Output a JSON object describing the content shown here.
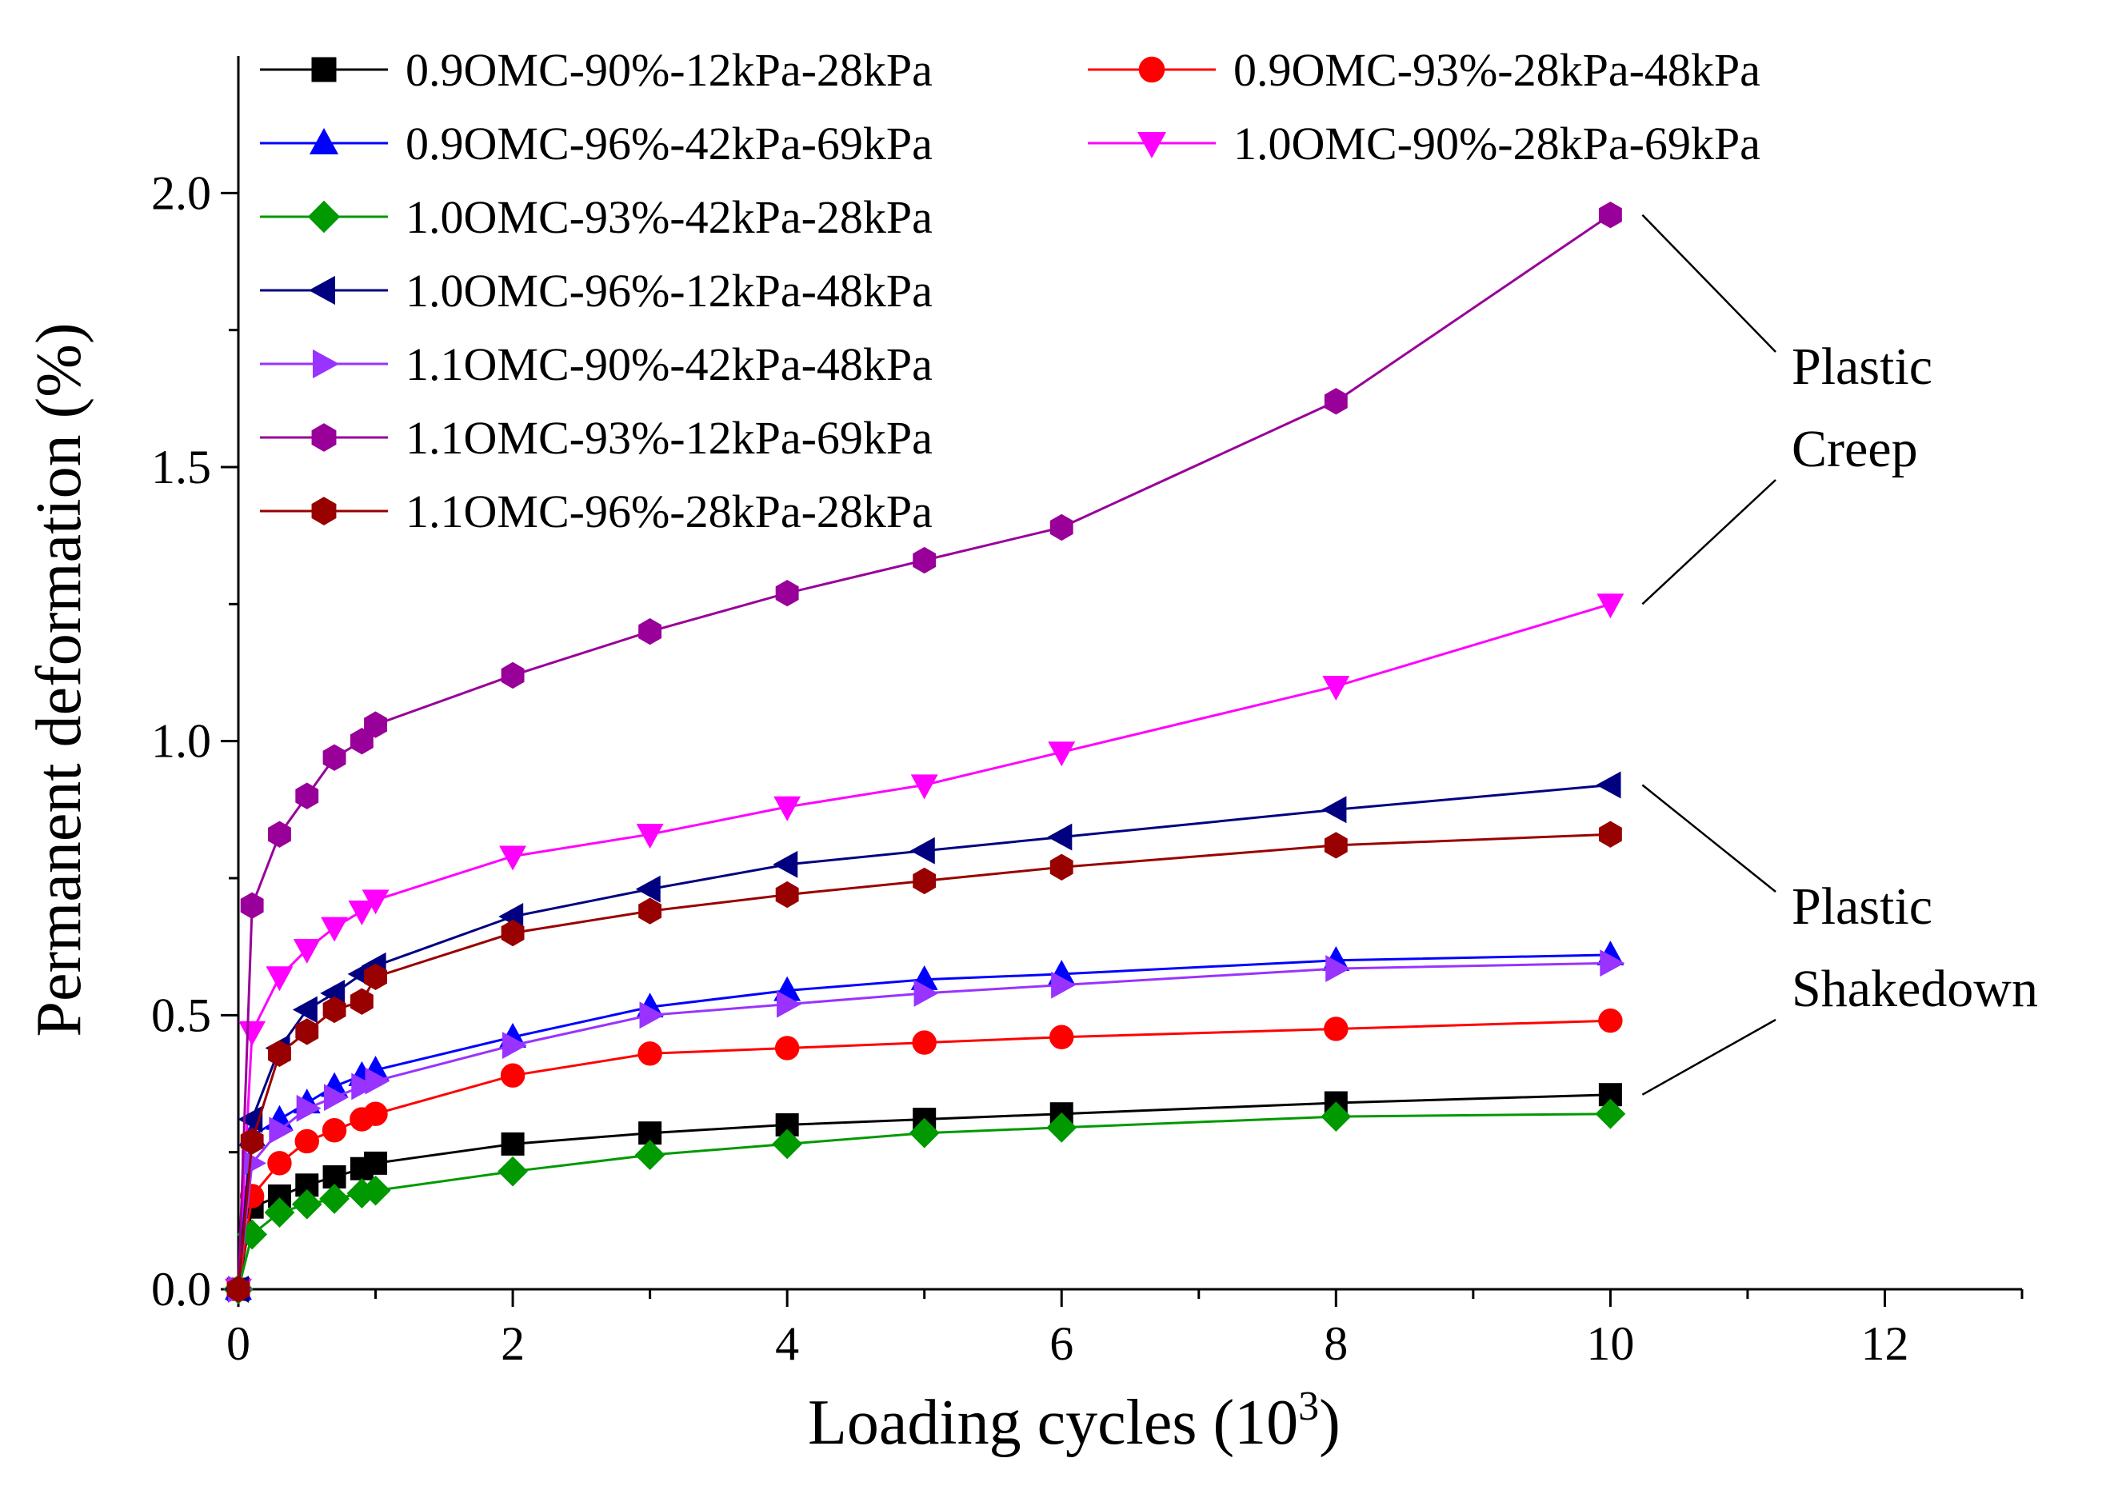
{
  "chart_data": {
    "type": "line",
    "title": "",
    "xlabel": "Loading cycles (10",
    "xlabel_sup": "3",
    "xlabel_end": ")",
    "ylabel": "Permanent deformation (%)",
    "xlim": [
      0,
      13
    ],
    "ylim": [
      0,
      2.25
    ],
    "xticks": [
      0,
      2,
      4,
      6,
      8,
      10,
      12
    ],
    "yticks": [
      0.0,
      0.5,
      1.0,
      1.5,
      2.0
    ],
    "xtick_labels": [
      "0",
      "2",
      "4",
      "6",
      "8",
      "10",
      "12"
    ],
    "ytick_labels": [
      "0.0",
      "0.5",
      "1.0",
      "1.5",
      "2.0"
    ],
    "legend_position": "top-left",
    "x": [
      0,
      0.1,
      0.3,
      0.5,
      0.7,
      0.9,
      1,
      2,
      3,
      4,
      5,
      6,
      8,
      10
    ],
    "series": [
      {
        "name": "0.9OMC-90%-12kPa-28kPa",
        "color": "#000000",
        "marker": "square",
        "values": [
          0,
          0.15,
          0.17,
          0.19,
          0.205,
          0.22,
          0.23,
          0.265,
          0.285,
          0.3,
          0.31,
          0.32,
          0.34,
          0.355
        ]
      },
      {
        "name": "0.9OMC-93%-28kPa-48kPa",
        "color": "#ff0000",
        "marker": "circle",
        "values": [
          0,
          0.17,
          0.23,
          0.27,
          0.29,
          0.31,
          0.32,
          0.39,
          0.43,
          0.44,
          0.45,
          0.46,
          0.475,
          0.49
        ]
      },
      {
        "name": "0.9OMC-96%-42kPa-69kPa",
        "color": "#0000ff",
        "marker": "triangle-up",
        "values": [
          0,
          0.28,
          0.31,
          0.34,
          0.37,
          0.39,
          0.4,
          0.46,
          0.515,
          0.545,
          0.565,
          0.575,
          0.6,
          0.61
        ]
      },
      {
        "name": "1.0OMC-90%-28kPa-69kPa",
        "color": "#ff00ff",
        "marker": "triangle-down",
        "values": [
          0,
          0.47,
          0.57,
          0.62,
          0.66,
          0.69,
          0.71,
          0.79,
          0.83,
          0.88,
          0.92,
          0.98,
          1.1,
          1.25
        ]
      },
      {
        "name": "1.0OMC-93%-42kPa-28kPa",
        "color": "#009900",
        "marker": "diamond",
        "values": [
          0,
          0.1,
          0.14,
          0.155,
          0.165,
          0.175,
          0.18,
          0.215,
          0.245,
          0.265,
          0.285,
          0.295,
          0.315,
          0.32
        ]
      },
      {
        "name": "1.0OMC-96%-12kPa-48kPa",
        "color": "#000080",
        "marker": "triangle-left",
        "values": [
          0,
          0.31,
          0.44,
          0.51,
          0.54,
          0.575,
          0.59,
          0.68,
          0.73,
          0.775,
          0.8,
          0.825,
          0.875,
          0.92
        ]
      },
      {
        "name": "1.1OMC-90%-42kPa-48kPa",
        "color": "#9933ff",
        "marker": "triangle-right",
        "values": [
          0,
          0.23,
          0.29,
          0.33,
          0.35,
          0.37,
          0.38,
          0.445,
          0.5,
          0.52,
          0.54,
          0.555,
          0.585,
          0.595
        ]
      },
      {
        "name": "1.1OMC-93%-12kPa-69kPa",
        "color": "#990099",
        "marker": "hexagon",
        "values": [
          0,
          0.7,
          0.83,
          0.9,
          0.97,
          1.0,
          1.03,
          1.12,
          1.2,
          1.27,
          1.33,
          1.39,
          1.62,
          1.96
        ]
      },
      {
        "name": "1.1OMC-96%-28kPa-28kPa",
        "color": "#990000",
        "marker": "hexagon",
        "values": [
          0,
          0.27,
          0.43,
          0.47,
          0.51,
          0.525,
          0.57,
          0.65,
          0.69,
          0.72,
          0.745,
          0.77,
          0.81,
          0.83
        ]
      }
    ],
    "annotations": [
      {
        "lines": [
          "Plastic",
          "Creep"
        ],
        "targets": [
          "1.1OMC-93%-12kPa-69kPa",
          "1.0OMC-90%-28kPa-69kPa"
        ]
      },
      {
        "lines": [
          "Plastic",
          "Shakedown"
        ],
        "targets": [
          "1.0OMC-96%-12kPa-48kPa",
          "0.9OMC-90%-12kPa-28kPa"
        ]
      }
    ]
  }
}
